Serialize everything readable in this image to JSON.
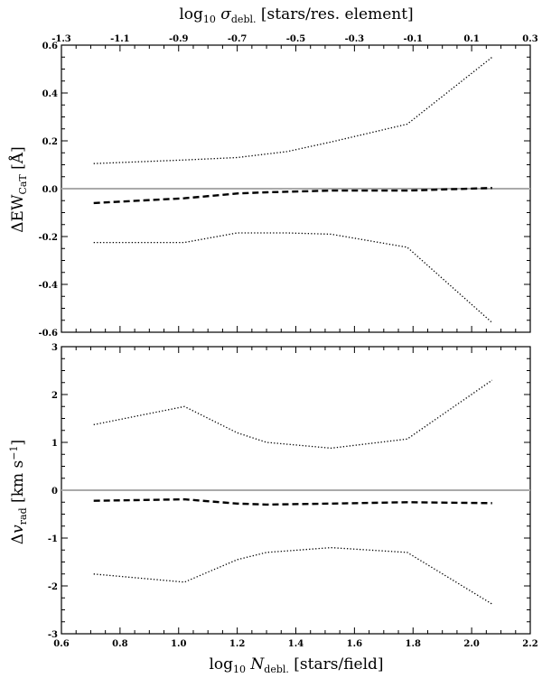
{
  "chart_data": [
    {
      "type": "line",
      "panel": "top",
      "xlabel": "log10 Ndebl. [stars/field]",
      "secondary_xlabel": "log10 σdebl. [stars/res. element]",
      "ylabel": "ΔEWCaT [Å]",
      "xlim": [
        0.6,
        2.2
      ],
      "ylim": [
        -0.6,
        0.6
      ],
      "secondary_xlim": [
        -1.3,
        0.3
      ],
      "y_ticks": [
        "-0.6",
        "-0.4",
        "-0.2",
        "0.0",
        "0.2",
        "0.4",
        "0.6"
      ],
      "secondary_x_ticks": [
        "-1.3",
        "-1.1",
        "-0.9",
        "-0.7",
        "-0.5",
        "-0.3",
        "-0.1",
        "0.1",
        "0.3"
      ],
      "reference_line": {
        "y": 0,
        "color": "#aaaaaa"
      },
      "series": [
        {
          "style": "dashed",
          "x": [
            0.71,
            1.02,
            1.2,
            1.3,
            1.52,
            1.78,
            2.07
          ],
          "y": [
            -0.06,
            -0.04,
            -0.02,
            -0.015,
            -0.008,
            -0.008,
            0.003
          ]
        },
        {
          "style": "dotted",
          "x": [
            0.71,
            1.02,
            1.2,
            1.37,
            1.52,
            1.78,
            2.07
          ],
          "y": [
            0.105,
            0.12,
            0.13,
            0.155,
            0.195,
            0.27,
            0.55
          ]
        },
        {
          "style": "dotted",
          "x": [
            0.71,
            1.02,
            1.2,
            1.37,
            1.52,
            1.78,
            2.07
          ],
          "y": [
            -0.225,
            -0.225,
            -0.185,
            -0.185,
            -0.19,
            -0.245,
            -0.56
          ]
        }
      ]
    },
    {
      "type": "line",
      "panel": "bottom",
      "xlabel": "log10 Ndebl. [stars/field]",
      "ylabel": "Δvrad [km s−1]",
      "xlim": [
        0.6,
        2.2
      ],
      "ylim": [
        -3,
        3
      ],
      "x_ticks": [
        "0.6",
        "0.8",
        "1.0",
        "1.2",
        "1.4",
        "1.6",
        "1.8",
        "2.0",
        "2.2"
      ],
      "y_ticks": [
        "-3",
        "-2",
        "-1",
        "0",
        "1",
        "2",
        "3"
      ],
      "reference_line": {
        "y": 0,
        "color": "#aaaaaa"
      },
      "series": [
        {
          "style": "dashed",
          "x": [
            0.71,
            1.02,
            1.2,
            1.3,
            1.52,
            1.78,
            2.07
          ],
          "y": [
            -0.22,
            -0.19,
            -0.28,
            -0.3,
            -0.28,
            -0.25,
            -0.27
          ]
        },
        {
          "style": "dotted",
          "x": [
            0.71,
            1.02,
            1.2,
            1.3,
            1.52,
            1.78,
            2.07
          ],
          "y": [
            1.37,
            1.75,
            1.2,
            1.0,
            0.88,
            1.07,
            2.3
          ]
        },
        {
          "style": "dotted",
          "x": [
            0.71,
            1.02,
            1.2,
            1.3,
            1.52,
            1.78,
            2.07
          ],
          "y": [
            -1.75,
            -1.92,
            -1.45,
            -1.3,
            -1.2,
            -1.3,
            -2.38
          ]
        }
      ]
    }
  ]
}
